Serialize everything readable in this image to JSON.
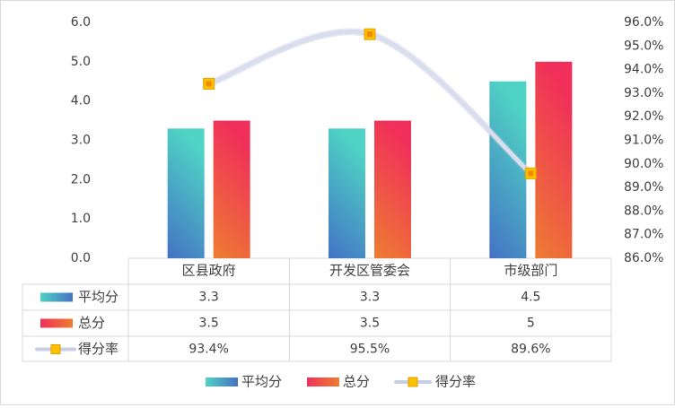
{
  "chart_data": {
    "type": "bar",
    "categories": [
      "区县政府",
      "开发区管委会",
      "市级部门"
    ],
    "series": [
      {
        "name": "平均分",
        "kind": "bar",
        "values": [
          3.3,
          3.3,
          4.5
        ],
        "colors": [
          "#4472C4",
          "#4FD3C4"
        ],
        "display": [
          "3.3",
          "3.3",
          "4.5"
        ]
      },
      {
        "name": "总分",
        "kind": "bar",
        "values": [
          3.5,
          3.5,
          5.0
        ],
        "colors": [
          "#ED7D31",
          "#F0305A"
        ],
        "display": [
          "3.5",
          "3.5",
          "5"
        ]
      },
      {
        "name": "得分率",
        "kind": "line",
        "axis": "right",
        "values": [
          93.4,
          95.5,
          89.6
        ],
        "color": "#D9DEEF",
        "marker": "#FFC000",
        "display": [
          "93.4%",
          "95.5%",
          "89.6%"
        ]
      }
    ],
    "y_left": {
      "min": 0,
      "max": 6,
      "step": 1,
      "ticks": [
        "0.0",
        "1.0",
        "2.0",
        "3.0",
        "4.0",
        "5.0",
        "6.0"
      ]
    },
    "y_right": {
      "min": 86,
      "max": 96,
      "step": 1,
      "ticks": [
        "86.0%",
        "87.0%",
        "88.0%",
        "89.0%",
        "90.0%",
        "91.0%",
        "92.0%",
        "93.0%",
        "94.0%",
        "95.0%",
        "96.0%"
      ]
    },
    "grid": false,
    "legend": "bottom",
    "data_table": true
  }
}
